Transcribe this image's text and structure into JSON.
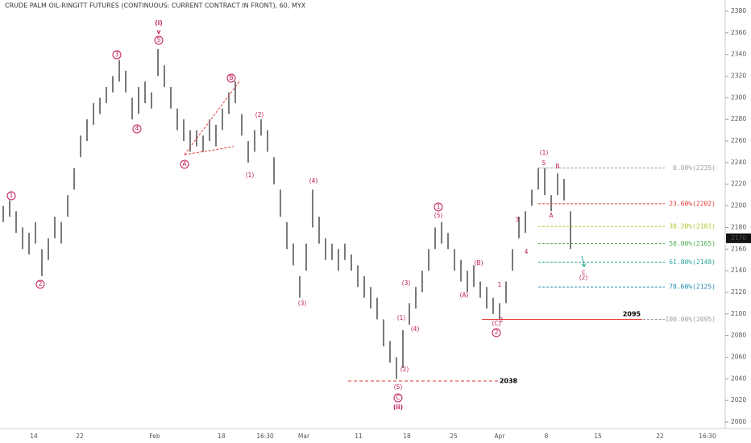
{
  "chart_data": {
    "type": "hlbar",
    "title": "CRUDE PALM OIL-RINGITT FUTURES (CONTINUOUS: CURRENT CONTRACT IN FRONT), 60, MYX",
    "color": "#222",
    "high": [
      2200,
      2205,
      2195,
      2180,
      2175,
      2185,
      2160,
      2170,
      2190,
      2185,
      2210,
      2235,
      2265,
      2280,
      2295,
      2300,
      2310,
      2320,
      2335,
      2325,
      2300,
      2310,
      2315,
      2305,
      2345,
      2330,
      2310,
      2290,
      2280,
      2270,
      2270,
      2265,
      2280,
      2275,
      2290,
      2305,
      2315,
      2285,
      2260,
      2270,
      2280,
      2270,
      2245,
      2215,
      2185,
      2165,
      2135,
      2165,
      2215,
      2190,
      2170,
      2165,
      2160,
      2165,
      2155,
      2145,
      2135,
      2125,
      2115,
      2095,
      2075,
      2060,
      2085,
      2110,
      2125,
      2140,
      2160,
      2180,
      2185,
      2175,
      2160,
      2150,
      2140,
      2145,
      2130,
      2125,
      2115,
      2110,
      2130,
      2160,
      2190,
      2195,
      2215,
      2235,
      2235,
      2210,
      2230,
      2225,
      2195
    ],
    "low": [
      2185,
      2190,
      2175,
      2160,
      2155,
      2165,
      2135,
      2150,
      2170,
      2165,
      2190,
      2215,
      2245,
      2260,
      2275,
      2285,
      2295,
      2305,
      2315,
      2305,
      2280,
      2285,
      2295,
      2290,
      2320,
      2310,
      2290,
      2270,
      2260,
      2250,
      2255,
      2250,
      2260,
      2255,
      2270,
      2285,
      2295,
      2265,
      2240,
      2250,
      2265,
      2250,
      2220,
      2190,
      2160,
      2145,
      2115,
      2140,
      2180,
      2165,
      2150,
      2150,
      2140,
      2150,
      2140,
      2125,
      2115,
      2105,
      2095,
      2070,
      2055,
      2040,
      2050,
      2090,
      2105,
      2120,
      2140,
      2160,
      2165,
      2160,
      2140,
      2130,
      2120,
      2125,
      2115,
      2105,
      2100,
      2095,
      2110,
      2140,
      2170,
      2175,
      2200,
      2215,
      2210,
      2195,
      2210,
      2205,
      2160
    ],
    "xticks": [
      "14",
      "22",
      "Feb",
      "18",
      "16:30",
      "Mar",
      "11",
      "18",
      "25",
      "Apr",
      "8",
      "15",
      "22",
      "16:30"
    ],
    "ylim": [
      2000,
      2380
    ],
    "yticks": [
      2000,
      2020,
      2040,
      2060,
      2080,
      2100,
      2120,
      2140,
      2160,
      2180,
      2200,
      2220,
      2240,
      2260,
      2280,
      2300,
      2320,
      2340,
      2360,
      2380
    ],
    "last_price": 2170,
    "levels": [
      {
        "value": 2095,
        "label": "2095",
        "color": "#e53935",
        "style": "solid"
      },
      {
        "value": 2038,
        "label": "2038",
        "color": "#e53935",
        "style": "dashed"
      }
    ],
    "fib_levels": [
      {
        "value": 2235,
        "label": "0.00%(2235)",
        "color": "#9e9e9e"
      },
      {
        "value": 2202,
        "label": "23.60%(2202)",
        "color": "#e53935"
      },
      {
        "value": 2181,
        "label": "38.20%(2181)",
        "color": "#b5c835"
      },
      {
        "value": 2165,
        "label": "50.00%(2165)",
        "color": "#4caf50"
      },
      {
        "value": 2148,
        "label": "61.80%(2148)",
        "color": "#26a69a"
      },
      {
        "value": 2125,
        "label": "78.60%(2125)",
        "color": "#1e88b0"
      },
      {
        "value": 2095,
        "label": "100.00%(2095)",
        "color": "#9e9e9e"
      }
    ],
    "annotations": [
      {
        "text": "(i)",
        "circled": false
      },
      {
        "text": "v",
        "circled": false
      },
      {
        "text": "(ii)",
        "circled": false
      },
      {
        "text": "1",
        "circled": true
      },
      {
        "text": "2",
        "circled": true
      },
      {
        "text": "3",
        "circled": true
      },
      {
        "text": "4",
        "circled": true
      },
      {
        "text": "5",
        "circled": true
      },
      {
        "text": "A",
        "circled": true
      },
      {
        "text": "B",
        "circled": true
      },
      {
        "text": "(2)",
        "circled": false
      },
      {
        "text": "(1)",
        "circled": false
      },
      {
        "text": "(4)",
        "circled": false
      },
      {
        "text": "(3)",
        "circled": false
      },
      {
        "text": "(5)",
        "circled": false
      },
      {
        "text": "C",
        "circled": true
      },
      {
        "text": "(3)",
        "circled": false
      },
      {
        "text": "(1)",
        "circled": false
      },
      {
        "text": "(2)",
        "circled": false
      },
      {
        "text": "(4)",
        "circled": false
      },
      {
        "text": "1",
        "circled": true
      },
      {
        "text": "(5)",
        "circled": false
      },
      {
        "text": "(B)",
        "circled": false
      },
      {
        "text": "(A)",
        "circled": false
      },
      {
        "text": "1",
        "circled": false
      },
      {
        "text": "2",
        "circled": false
      },
      {
        "text": "(C)",
        "circled": false
      },
      {
        "text": "2",
        "circled": true
      },
      {
        "text": "3",
        "circled": false
      },
      {
        "text": "4",
        "circled": false
      },
      {
        "text": "5",
        "circled": false
      },
      {
        "text": "(1)",
        "circled": false
      },
      {
        "text": "A",
        "circled": false
      },
      {
        "text": "B",
        "circled": false
      },
      {
        "text": "c",
        "circled": false
      },
      {
        "text": "(2)",
        "circled": false
      }
    ]
  }
}
